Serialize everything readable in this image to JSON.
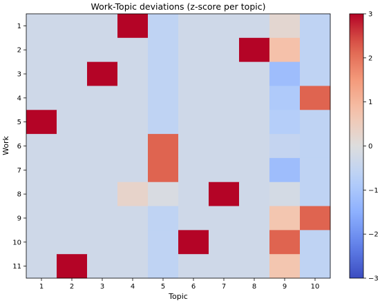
{
  "chart_data": {
    "type": "heatmap",
    "title": "Work-Topic deviations (z-score per topic)",
    "xlabel": "Topic",
    "ylabel": "Work",
    "x_categories": [
      "1",
      "2",
      "3",
      "4",
      "5",
      "6",
      "7",
      "8",
      "9",
      "10"
    ],
    "y_categories": [
      "1",
      "2",
      "3",
      "4",
      "5",
      "6",
      "7",
      "8",
      "9",
      "10",
      "11"
    ],
    "values": [
      [
        -0.3,
        -0.3,
        -0.3,
        3.0,
        -0.6,
        -0.3,
        -0.3,
        -0.3,
        0.2,
        -0.6
      ],
      [
        -0.3,
        -0.3,
        -0.3,
        -0.3,
        -0.6,
        -0.3,
        -0.3,
        3.0,
        0.8,
        -0.6
      ],
      [
        -0.3,
        -0.3,
        3.0,
        -0.3,
        -0.6,
        -0.3,
        -0.3,
        -0.3,
        -1.2,
        -0.6
      ],
      [
        -0.3,
        -0.3,
        -0.3,
        -0.3,
        -0.6,
        -0.3,
        -0.3,
        -0.3,
        -0.9,
        2.2
      ],
      [
        3.0,
        -0.3,
        -0.3,
        -0.3,
        -0.6,
        -0.3,
        -0.3,
        -0.3,
        -0.8,
        -0.6
      ],
      [
        -0.3,
        -0.3,
        -0.3,
        -0.3,
        2.2,
        -0.3,
        -0.3,
        -0.3,
        -0.5,
        -0.6
      ],
      [
        -0.3,
        -0.3,
        -0.3,
        -0.3,
        2.2,
        -0.3,
        -0.3,
        -0.3,
        -1.2,
        -0.6
      ],
      [
        -0.3,
        -0.3,
        -0.3,
        0.3,
        -0.1,
        -0.3,
        3.0,
        -0.3,
        -0.2,
        -0.6
      ],
      [
        -0.3,
        -0.3,
        -0.3,
        -0.3,
        -0.6,
        -0.3,
        -0.3,
        -0.3,
        0.7,
        2.2
      ],
      [
        -0.3,
        -0.3,
        -0.3,
        -0.3,
        -0.6,
        3.0,
        -0.3,
        -0.3,
        2.2,
        -0.6
      ],
      [
        -0.3,
        3.0,
        -0.3,
        -0.3,
        -0.6,
        -0.3,
        -0.3,
        -0.3,
        0.7,
        -0.6
      ]
    ],
    "colormap": "coolwarm",
    "vmin": -3,
    "vmax": 3,
    "colorbar_ticks": [
      "3",
      "2",
      "1",
      "0",
      "−1",
      "−2",
      "−3"
    ],
    "colorbar_tick_values": [
      3,
      2,
      1,
      0,
      -1,
      -2,
      -3
    ]
  }
}
